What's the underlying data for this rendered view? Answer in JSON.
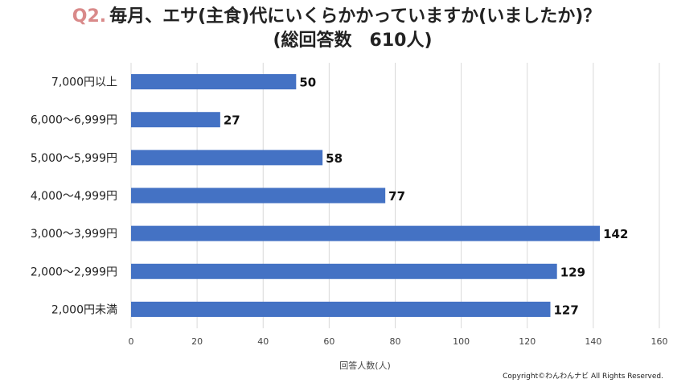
{
  "title": {
    "prefix": "Q2.",
    "text": "毎月、エサ(主食)代にいくらかかっていますか(いましたか)？",
    "subtitle": "(総回答数　610人)"
  },
  "copyright": "Copyright©わんわんナビ All Rights Reserved.",
  "colors": {
    "bar": "#4472c4",
    "grid": "#d9d9d9",
    "title_prefix": "#d98a8a"
  },
  "chart_data": {
    "type": "bar",
    "orientation": "horizontal",
    "categories": [
      "7,000円以上",
      "6,000～6,999円",
      "5,000～5,999円",
      "4,000～4,999円",
      "3,000～3,999円",
      "2,000～2,999円",
      "2,000円未満"
    ],
    "values": [
      50,
      27,
      58,
      77,
      142,
      129,
      127
    ],
    "xlabel": "回答人数(人)",
    "xlim": [
      0,
      160
    ],
    "xticks": [
      0,
      20,
      40,
      60,
      80,
      100,
      120,
      140,
      160
    ],
    "grid": true
  }
}
